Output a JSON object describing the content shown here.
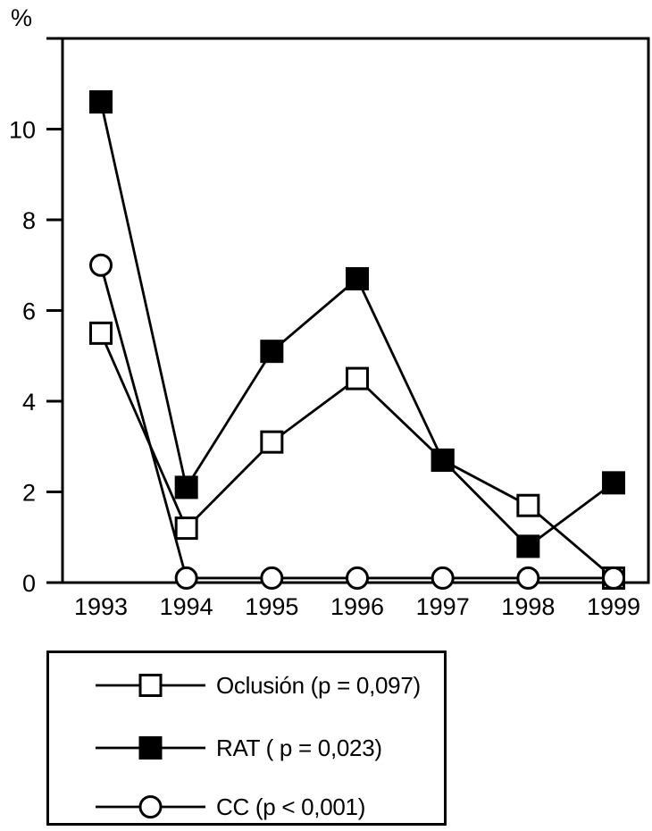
{
  "colors": {
    "foreground": "#000000",
    "background": "#ffffff"
  },
  "chart_data": {
    "type": "line",
    "title": "",
    "xlabel": "",
    "ylabel": "%",
    "ylim": [
      0,
      12
    ],
    "y_ticks": [
      0,
      2,
      4,
      6,
      8,
      10
    ],
    "grid": false,
    "legend_position": "bottom",
    "categories": [
      "1993",
      "1994",
      "1995",
      "1996",
      "1997",
      "1998",
      "1999"
    ],
    "series": [
      {
        "name": "Oclusión (p = 0,097)",
        "marker": "open-square",
        "values": [
          5.5,
          1.2,
          3.1,
          4.5,
          2.7,
          1.7,
          0.1
        ]
      },
      {
        "name": "RAT ( p = 0,023)",
        "marker": "filled-square",
        "values": [
          10.6,
          2.1,
          5.1,
          6.7,
          2.7,
          0.8,
          2.2
        ]
      },
      {
        "name": "CC (p < 0,001)",
        "marker": "open-circle",
        "values": [
          7.0,
          0.1,
          0.1,
          0.1,
          0.1,
          0.1,
          0.1
        ]
      }
    ]
  }
}
